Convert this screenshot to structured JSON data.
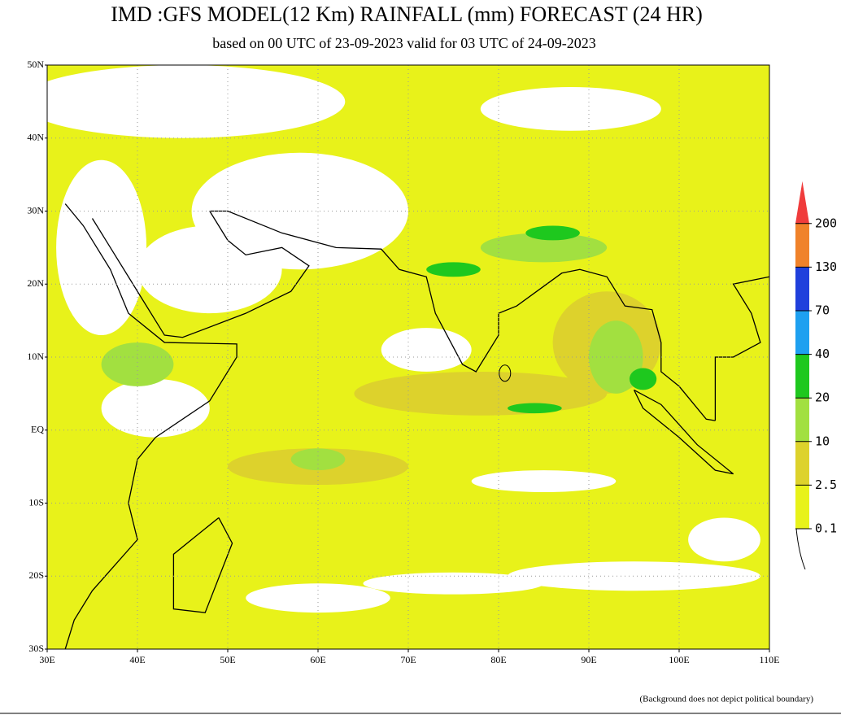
{
  "header": {
    "title": "IMD :GFS MODEL(12 Km) RAINFALL (mm) FORECAST (24 HR)",
    "subtitle": "based on 00 UTC of 23-09-2023 valid for 03 UTC of 24-09-2023"
  },
  "map": {
    "lon_range": [
      30,
      110
    ],
    "lat_range": [
      -30,
      50
    ],
    "lat_ticks": [
      {
        "value": 50,
        "label": "50N"
      },
      {
        "value": 40,
        "label": "40N"
      },
      {
        "value": 30,
        "label": "30N"
      },
      {
        "value": 20,
        "label": "20N"
      },
      {
        "value": 10,
        "label": "10N"
      },
      {
        "value": 0,
        "label": "EQ"
      },
      {
        "value": -10,
        "label": "10S"
      },
      {
        "value": -20,
        "label": "20S"
      },
      {
        "value": -30,
        "label": "30S"
      }
    ],
    "lon_ticks": [
      {
        "value": 30,
        "label": "30E"
      },
      {
        "value": 40,
        "label": "40E"
      },
      {
        "value": 50,
        "label": "50E"
      },
      {
        "value": 60,
        "label": "60E"
      },
      {
        "value": 70,
        "label": "70E"
      },
      {
        "value": 80,
        "label": "80E"
      },
      {
        "value": 90,
        "label": "90E"
      },
      {
        "value": 100,
        "label": "100E"
      },
      {
        "value": 110,
        "label": "110E"
      }
    ]
  },
  "legend": {
    "levels": [
      0.1,
      2.5,
      10,
      20,
      40,
      70,
      130,
      200
    ],
    "colors": [
      "#e8f21a",
      "#ddd22c",
      "#a2e040",
      "#1ec81e",
      "#1ea0f0",
      "#2040dc",
      "#f0822a",
      "#f03c3c"
    ]
  },
  "footnote": "(Background does not depict political boundary)"
}
